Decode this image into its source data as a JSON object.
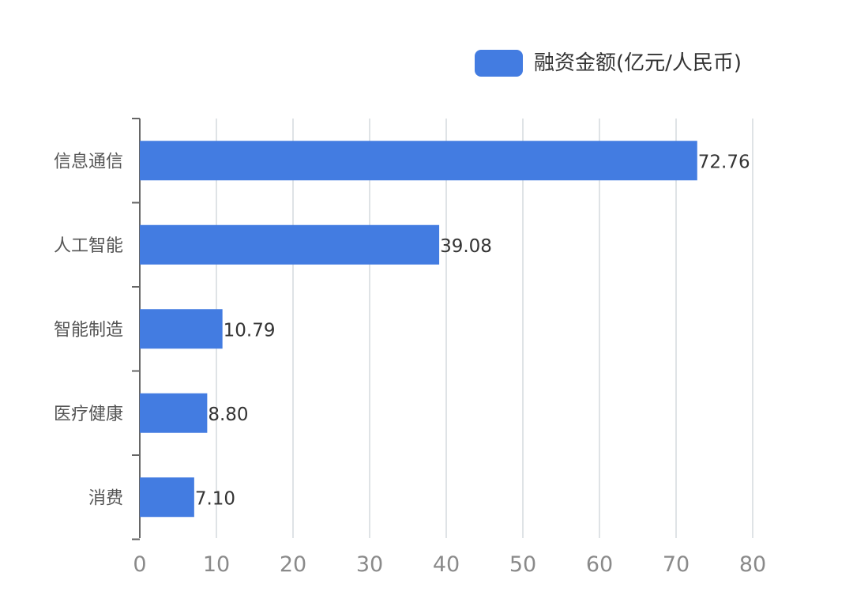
{
  "chart_data": {
    "type": "bar",
    "orientation": "horizontal",
    "categories": [
      "信息通信",
      "人工智能",
      "智能制造",
      "医疗健康",
      "消费"
    ],
    "series": [
      {
        "name": "融资金额(亿元/人民币)",
        "values": [
          72.76,
          39.08,
          10.79,
          8.8,
          7.1
        ],
        "data_labels": [
          "72.76",
          "39.08",
          "10.79",
          "8.80",
          "7.10"
        ]
      }
    ],
    "xlim": [
      0,
      80
    ],
    "x_ticks": [
      0,
      10,
      20,
      30,
      40,
      50,
      60,
      70,
      80
    ],
    "grid": "vertical",
    "legend_position": "top-right"
  },
  "colors": {
    "bar": "#437ce1",
    "grid": "#dfe3e6",
    "axis": "#666666"
  }
}
